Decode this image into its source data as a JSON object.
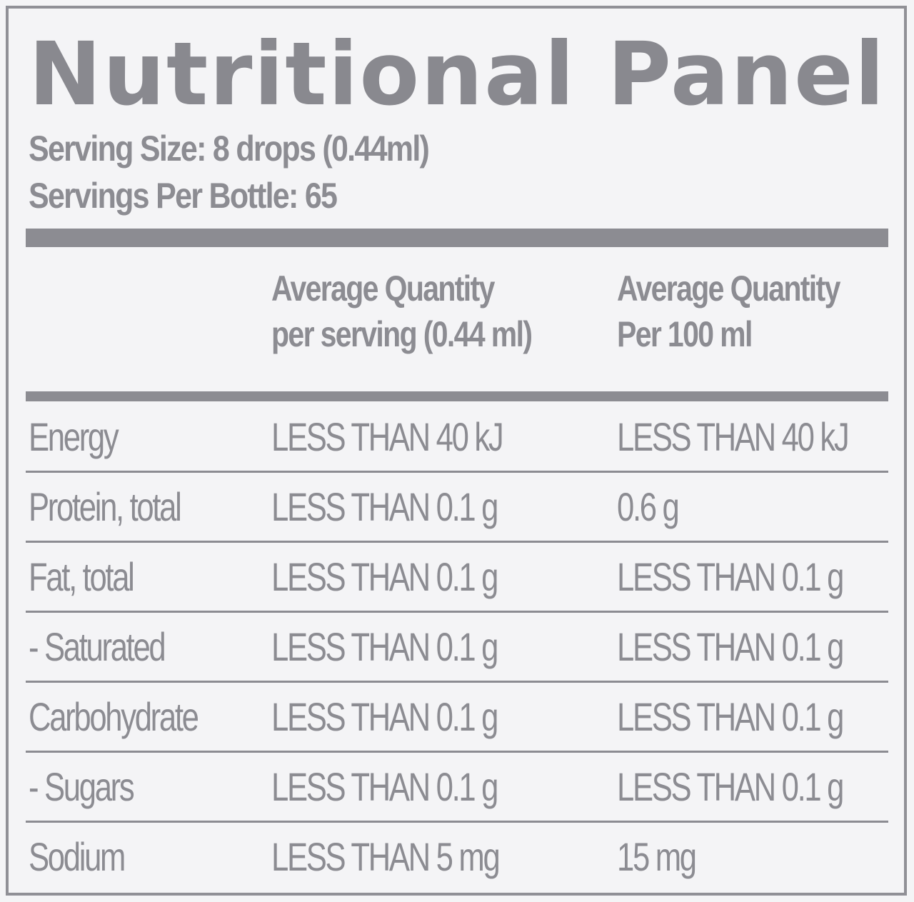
{
  "title": "Nutritional Panel",
  "serving_size": "Serving Size: 8 drops (0.44ml)",
  "servings_per_bottle": "Servings Per Bottle: 65",
  "columns": {
    "per_serving": {
      "line1": "Average Quantity",
      "line2": "per serving (0.44 ml)"
    },
    "per_100ml": {
      "line1": "Average Quantity",
      "line2": "Per 100 ml"
    }
  },
  "rows": [
    {
      "nutrient": "Energy",
      "per_serving": "LESS THAN 40 kJ",
      "per_100ml": "LESS THAN 40 kJ"
    },
    {
      "nutrient": "Protein, total",
      "per_serving": "LESS THAN 0.1 g",
      "per_100ml": "0.6 g"
    },
    {
      "nutrient": "Fat, total",
      "per_serving": "LESS THAN 0.1 g",
      "per_100ml": "LESS THAN 0.1 g"
    },
    {
      "nutrient": "- Saturated",
      "per_serving": "LESS THAN 0.1 g",
      "per_100ml": "LESS THAN 0.1 g"
    },
    {
      "nutrient": "Carbohydrate",
      "per_serving": "LESS THAN 0.1 g",
      "per_100ml": "LESS THAN 0.1 g"
    },
    {
      "nutrient": "- Sugars",
      "per_serving": "LESS THAN 0.1 g",
      "per_100ml": "LESS THAN 0.1 g"
    },
    {
      "nutrient": "Sodium",
      "per_serving": "LESS THAN 5 mg",
      "per_100ml": "15 mg"
    }
  ],
  "colors": {
    "text": "#8c8c92",
    "background": "#f4f4f6",
    "border": "#909096"
  }
}
